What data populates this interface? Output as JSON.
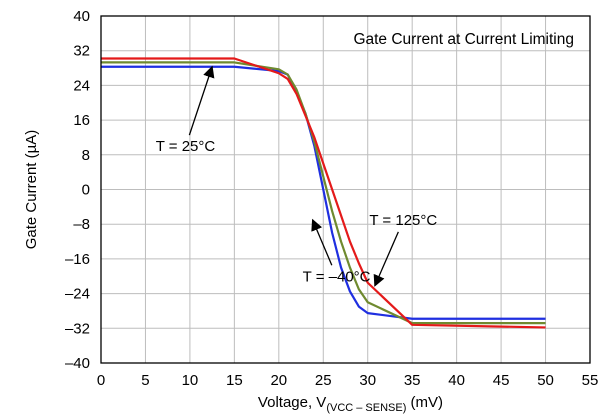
{
  "colors": {
    "blue": "#1f2fe0",
    "green": "#6f8a2f",
    "red": "#e41a1a",
    "gridline": "#bdbdbd",
    "axis": "#000000"
  },
  "chart_data": {
    "type": "line",
    "title": "Gate Current at Current Limiting",
    "xlabel": "Voltage, V(VCC – SENSE) (mV)",
    "xlabel_parts": {
      "prefix": "Voltage, V",
      "subscript": "(VCC – SENSE)",
      "suffix": " (mV)"
    },
    "ylabel": "Gate Current (µA)",
    "xlim": [
      0,
      55
    ],
    "ylim": [
      -40,
      40
    ],
    "x_ticks": [
      0,
      5,
      10,
      15,
      20,
      25,
      30,
      35,
      40,
      45,
      50,
      55
    ],
    "y_ticks": [
      40,
      32,
      24,
      16,
      8,
      0,
      -8,
      -16,
      -24,
      -32,
      -40
    ],
    "y_tick_labels": [
      "40",
      "32",
      "24",
      "16",
      "8",
      "0",
      "–8",
      "–16",
      "–24",
      "–32",
      "–40"
    ],
    "grid": true,
    "series": [
      {
        "name": "T = –40°C",
        "color": "#1f2fe0",
        "points": [
          [
            0,
            28.3
          ],
          [
            15,
            28.3
          ],
          [
            20,
            27.3
          ],
          [
            21,
            26.5
          ],
          [
            22,
            22.5
          ],
          [
            23,
            17.5
          ],
          [
            24,
            10
          ],
          [
            25,
            0
          ],
          [
            26,
            -10
          ],
          [
            27,
            -18
          ],
          [
            28,
            -23.5
          ],
          [
            29,
            -27
          ],
          [
            30,
            -28.5
          ],
          [
            35,
            -29.8
          ],
          [
            50,
            -29.8
          ]
        ]
      },
      {
        "name": "T = 25°C",
        "color": "#6f8a2f",
        "points": [
          [
            0,
            29.3
          ],
          [
            15,
            29.3
          ],
          [
            20,
            27.7
          ],
          [
            21,
            26.5
          ],
          [
            22,
            23
          ],
          [
            23,
            17.5
          ],
          [
            24,
            11
          ],
          [
            25,
            3
          ],
          [
            26,
            -5
          ],
          [
            27,
            -12
          ],
          [
            28,
            -18
          ],
          [
            29,
            -23
          ],
          [
            30,
            -26
          ],
          [
            35,
            -30.8
          ],
          [
            50,
            -30.8
          ]
        ]
      },
      {
        "name": "T = 125°C",
        "color": "#e41a1a",
        "points": [
          [
            0,
            30.2
          ],
          [
            15,
            30.2
          ],
          [
            20,
            26.8
          ],
          [
            21,
            25.5
          ],
          [
            22,
            22
          ],
          [
            23,
            17
          ],
          [
            24,
            12
          ],
          [
            25,
            6
          ],
          [
            26,
            0
          ],
          [
            27,
            -6
          ],
          [
            28,
            -12
          ],
          [
            29,
            -17
          ],
          [
            30,
            -21.5
          ],
          [
            35,
            -31.2
          ],
          [
            50,
            -31.8
          ]
        ]
      }
    ],
    "annotations": [
      {
        "text": "T = 25°C",
        "text_x": 9.5,
        "text_y": 10,
        "arrow_x": 12.5,
        "arrow_y": 28.3
      },
      {
        "text": "T = –40°C",
        "text_x": 26.5,
        "text_y": -20,
        "arrow_x": 23.8,
        "arrow_y": -7
      },
      {
        "text": "T = 125°C",
        "text_x": 34,
        "text_y": -7,
        "arrow_x": 30.8,
        "arrow_y": -22.2
      }
    ]
  }
}
